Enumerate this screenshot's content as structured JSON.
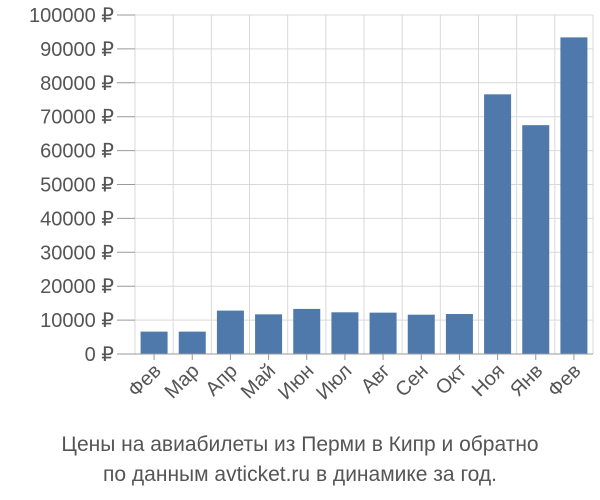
{
  "chart_data": {
    "type": "bar",
    "categories": [
      "Фев",
      "Мар",
      "Апр",
      "Май",
      "Июн",
      "Июл",
      "Авг",
      "Сен",
      "Окт",
      "Ноя",
      "Янв",
      "Фев"
    ],
    "values": [
      6600,
      6600,
      12800,
      11700,
      13300,
      12300,
      12200,
      11600,
      11800,
      76600,
      67500,
      93400
    ],
    "ylim": [
      0,
      100000
    ],
    "yticks": [
      0,
      10000,
      20000,
      30000,
      40000,
      50000,
      60000,
      70000,
      80000,
      90000,
      100000
    ],
    "ytick_labels": [
      "0 ₽",
      "10000 ₽",
      "20000 ₽",
      "30000 ₽",
      "40000 ₽",
      "50000 ₽",
      "60000 ₽",
      "70000 ₽",
      "80000 ₽",
      "90000 ₽",
      "100000 ₽"
    ],
    "grid": true,
    "bar_color": "#4e79aa",
    "grid_color": "#d9d9d9"
  },
  "caption": {
    "line1": "Цены на авиабилеты из Перми в Кипр и обратно",
    "line2": "по данным avticket.ru в динамике за год."
  }
}
